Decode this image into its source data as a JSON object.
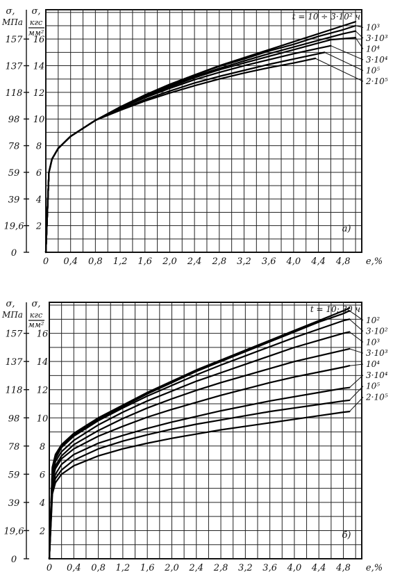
{
  "chart_data": [
    {
      "type": "line",
      "panel_label": "а)",
      "axis_label_mpa": "σ,",
      "axis_unit_mpa": "МПа",
      "axis_label_kgs": "σ,",
      "axis_unit_kgs_top": "кгс",
      "axis_unit_kgs_bottom": "мм²",
      "xlabel": "e,%",
      "xlim": [
        0,
        5.1
      ],
      "ylim": [
        0,
        18.2
      ],
      "x_ticks": [
        "0",
        "0,4",
        "0,8",
        "1,2",
        "1,6",
        "2,0",
        "2,4",
        "2,8",
        "3,2",
        "3,6",
        "4,0",
        "4,4",
        "4,8"
      ],
      "x_tick_values": [
        0,
        0.4,
        0.8,
        1.2,
        1.6,
        2.0,
        2.4,
        2.8,
        3.2,
        3.6,
        4.0,
        4.4,
        4.8
      ],
      "y_ticks_mpa": [
        "0",
        "19,6",
        "39",
        "59",
        "78",
        "98",
        "118",
        "137",
        "157"
      ],
      "y_ticks_kgs": [
        "2",
        "4",
        "6",
        "8",
        "10",
        "12",
        "14",
        "16"
      ],
      "y_tick_values_kgs": [
        2,
        4,
        6,
        8,
        10,
        12,
        14,
        16
      ],
      "grid": true,
      "series": [
        {
          "name": "t = 10 ÷ 3·10² ч",
          "x": [
            0,
            0.05,
            0.1,
            0.2,
            0.4,
            0.8,
            1.2,
            1.6,
            2.0,
            2.4,
            2.8,
            3.2,
            3.6,
            4.0,
            4.4,
            4.8,
            5.0
          ],
          "y": [
            0,
            6.0,
            7.0,
            7.8,
            8.7,
            9.9,
            10.9,
            11.8,
            12.6,
            13.3,
            14.0,
            14.6,
            15.2,
            15.8,
            16.4,
            17.0,
            17.3
          ]
        },
        {
          "name": "10³",
          "x": [
            0,
            0.05,
            0.1,
            0.2,
            0.4,
            0.8,
            1.2,
            1.6,
            2.0,
            2.4,
            2.8,
            3.2,
            3.6,
            4.0,
            4.4,
            4.8,
            5.0
          ],
          "y": [
            0,
            6.0,
            7.0,
            7.8,
            8.7,
            9.9,
            10.9,
            11.8,
            12.6,
            13.3,
            13.95,
            14.5,
            15.1,
            15.6,
            16.2,
            16.7,
            17.0
          ]
        },
        {
          "name": "3·10³",
          "x": [
            0,
            0.05,
            0.1,
            0.2,
            0.4,
            0.8,
            1.2,
            1.6,
            2.0,
            2.4,
            2.8,
            3.2,
            3.6,
            4.0,
            4.4,
            4.8,
            5.0
          ],
          "y": [
            0,
            6.0,
            7.0,
            7.8,
            8.7,
            9.9,
            10.85,
            11.7,
            12.5,
            13.2,
            13.8,
            14.35,
            14.9,
            15.4,
            15.9,
            16.4,
            16.6
          ]
        },
        {
          "name": "10⁴",
          "x": [
            0,
            0.05,
            0.1,
            0.2,
            0.4,
            0.8,
            1.2,
            1.6,
            2.0,
            2.4,
            2.8,
            3.2,
            3.6,
            4.0,
            4.4,
            4.6,
            5.0
          ],
          "y": [
            0,
            6.0,
            7.0,
            7.8,
            8.7,
            9.9,
            10.8,
            11.65,
            12.4,
            13.1,
            13.7,
            14.2,
            14.7,
            15.2,
            15.7,
            15.95,
            16.1
          ]
        },
        {
          "name": "3·10⁴",
          "x": [
            0,
            0.05,
            0.1,
            0.2,
            0.4,
            0.8,
            1.2,
            1.6,
            2.0,
            2.4,
            2.8,
            3.2,
            3.6,
            4.0,
            4.4,
            4.6
          ],
          "y": [
            0,
            6.0,
            7.0,
            7.8,
            8.7,
            9.9,
            10.8,
            11.6,
            12.3,
            12.95,
            13.5,
            14.0,
            14.45,
            14.9,
            15.3,
            15.5
          ]
        },
        {
          "name": "10⁵",
          "x": [
            0,
            0.05,
            0.1,
            0.2,
            0.4,
            0.8,
            1.2,
            1.6,
            2.0,
            2.4,
            2.8,
            3.2,
            3.6,
            4.0,
            4.4,
            4.5
          ],
          "y": [
            0,
            6.0,
            7.0,
            7.8,
            8.7,
            9.9,
            10.7,
            11.45,
            12.1,
            12.7,
            13.2,
            13.65,
            14.1,
            14.5,
            14.9,
            15.0
          ]
        },
        {
          "name": "2·10⁵",
          "x": [
            0,
            0.05,
            0.1,
            0.2,
            0.4,
            0.8,
            1.2,
            1.6,
            2.0,
            2.4,
            2.8,
            3.2,
            3.6,
            4.0,
            4.3,
            4.35
          ],
          "y": [
            0,
            6.0,
            7.0,
            7.8,
            8.7,
            9.9,
            10.65,
            11.35,
            11.95,
            12.5,
            13.0,
            13.45,
            13.85,
            14.2,
            14.5,
            14.55
          ]
        }
      ]
    },
    {
      "type": "line",
      "panel_label": "б)",
      "axis_label_mpa": "σ,",
      "axis_unit_mpa": "МПа",
      "axis_label_kgs": "σ,",
      "axis_unit_kgs_top": "кгс",
      "axis_unit_kgs_bottom": "мм²",
      "xlabel": "e,%",
      "xlim": [
        0,
        5.1
      ],
      "ylim": [
        0,
        18.2
      ],
      "x_ticks": [
        "0",
        "0,4",
        "0,8",
        "1,2",
        "1,6",
        "2,0",
        "2,4",
        "2,8",
        "3,2",
        "3,6",
        "4,0",
        "4,4",
        "4,8"
      ],
      "x_tick_values": [
        0,
        0.4,
        0.8,
        1.2,
        1.6,
        2.0,
        2.4,
        2.8,
        3.2,
        3.6,
        4.0,
        4.4,
        4.8
      ],
      "y_ticks_mpa": [
        "0",
        "19,6",
        "39",
        "59",
        "78",
        "98",
        "118",
        "137",
        "157"
      ],
      "y_ticks_kgs": [
        "2",
        "4",
        "6",
        "8",
        "10",
        "12",
        "14",
        "16"
      ],
      "y_tick_values_kgs": [
        2,
        4,
        6,
        8,
        10,
        12,
        14,
        16
      ],
      "grid": true,
      "series": [
        {
          "name": "t = 10; 30 ч",
          "x": [
            0,
            0.05,
            0.1,
            0.2,
            0.4,
            0.8,
            1.2,
            1.6,
            2.0,
            2.4,
            2.8,
            3.2,
            3.6,
            4.0,
            4.4,
            4.8,
            4.9
          ],
          "y": [
            0,
            6.5,
            7.4,
            8.1,
            8.9,
            10.0,
            10.9,
            11.8,
            12.6,
            13.4,
            14.1,
            14.8,
            15.5,
            16.2,
            16.9,
            17.6,
            17.8
          ]
        },
        {
          "name": "10²",
          "x": [
            0,
            0.05,
            0.1,
            0.2,
            0.4,
            0.8,
            1.2,
            1.6,
            2.0,
            2.4,
            2.8,
            3.2,
            3.6,
            4.0,
            4.4,
            4.8,
            4.9
          ],
          "y": [
            0,
            6.4,
            7.3,
            8.0,
            8.8,
            9.9,
            10.8,
            11.7,
            12.5,
            13.3,
            14.0,
            14.7,
            15.4,
            16.1,
            16.8,
            17.4,
            17.6
          ]
        },
        {
          "name": "3·10²",
          "x": [
            0,
            0.05,
            0.1,
            0.2,
            0.4,
            0.8,
            1.2,
            1.6,
            2.0,
            2.4,
            2.8,
            3.2,
            3.6,
            4.0,
            4.4,
            4.8,
            4.9
          ],
          "y": [
            0,
            6.2,
            7.1,
            7.9,
            8.7,
            9.8,
            10.7,
            11.55,
            12.3,
            13.05,
            13.75,
            14.4,
            15.05,
            15.7,
            16.3,
            16.9,
            17.0
          ]
        },
        {
          "name": "10³",
          "x": [
            0,
            0.05,
            0.1,
            0.2,
            0.4,
            0.8,
            1.2,
            1.6,
            2.0,
            2.4,
            2.8,
            3.2,
            3.6,
            4.0,
            4.4,
            4.8,
            4.9
          ],
          "y": [
            0,
            6.0,
            6.9,
            7.6,
            8.4,
            9.5,
            10.4,
            11.2,
            11.9,
            12.6,
            13.2,
            13.8,
            14.4,
            15.0,
            15.5,
            16.0,
            16.1
          ]
        },
        {
          "name": "3·10³",
          "x": [
            0,
            0.05,
            0.1,
            0.2,
            0.4,
            0.8,
            1.2,
            1.6,
            2.0,
            2.4,
            2.8,
            3.2,
            3.6,
            4.0,
            4.4,
            4.8,
            4.9
          ],
          "y": [
            0,
            5.8,
            6.6,
            7.3,
            8.1,
            9.1,
            9.95,
            10.7,
            11.35,
            11.95,
            12.5,
            13.0,
            13.5,
            14.0,
            14.4,
            14.8,
            14.9
          ]
        },
        {
          "name": "10⁴",
          "x": [
            0,
            0.05,
            0.1,
            0.2,
            0.4,
            0.8,
            1.2,
            1.6,
            2.0,
            2.4,
            2.8,
            3.2,
            3.6,
            4.0,
            4.4,
            4.8,
            4.9
          ],
          "y": [
            0,
            5.6,
            6.4,
            7.1,
            7.8,
            8.7,
            9.4,
            10.05,
            10.6,
            11.1,
            11.6,
            12.05,
            12.5,
            12.9,
            13.25,
            13.6,
            13.7
          ]
        },
        {
          "name": "3·10⁴",
          "x": [
            0,
            0.05,
            0.1,
            0.2,
            0.4,
            0.8,
            1.2,
            1.6,
            2.0,
            2.4,
            2.8,
            3.2,
            3.6,
            4.0,
            4.4,
            4.8,
            4.9
          ],
          "y": [
            0,
            5.2,
            6.0,
            6.7,
            7.4,
            8.2,
            8.75,
            9.25,
            9.7,
            10.1,
            10.5,
            10.85,
            11.2,
            11.5,
            11.8,
            12.1,
            12.15
          ]
        },
        {
          "name": "10⁵",
          "x": [
            0,
            0.05,
            0.1,
            0.2,
            0.4,
            0.8,
            1.2,
            1.6,
            2.0,
            2.4,
            2.8,
            3.2,
            3.6,
            4.0,
            4.4,
            4.8,
            4.9
          ],
          "y": [
            0,
            4.9,
            5.7,
            6.3,
            7.0,
            7.8,
            8.35,
            8.8,
            9.2,
            9.55,
            9.85,
            10.15,
            10.45,
            10.7,
            10.95,
            11.2,
            11.25
          ]
        },
        {
          "name": "2·10⁵",
          "x": [
            0,
            0.05,
            0.1,
            0.2,
            0.4,
            0.8,
            1.2,
            1.6,
            2.0,
            2.4,
            2.8,
            3.2,
            3.6,
            4.0,
            4.4,
            4.8,
            4.9
          ],
          "y": [
            0,
            4.6,
            5.4,
            6.0,
            6.6,
            7.3,
            7.8,
            8.2,
            8.55,
            8.85,
            9.15,
            9.4,
            9.65,
            9.9,
            10.15,
            10.4,
            10.45
          ]
        }
      ]
    }
  ]
}
